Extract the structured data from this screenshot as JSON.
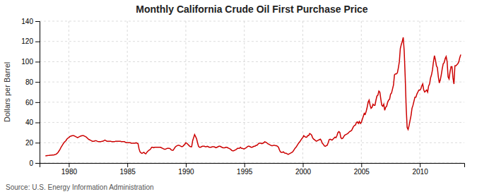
{
  "chart_data": {
    "type": "line",
    "title": "Monthly California Crude Oil First Purchase Price",
    "ylabel": "Dollars per Barrel",
    "source": "Source: U.S. Energy Information Administration",
    "color": "#cc0000",
    "grid": true,
    "xlim": [
      1977.5,
      2013.8
    ],
    "xticks": [
      1980,
      1985,
      1990,
      1995,
      2000,
      2005,
      2010
    ],
    "ylim": [
      0,
      140
    ],
    "yticks": [
      0,
      20,
      40,
      60,
      80,
      100,
      120,
      140
    ],
    "x": [
      1978.0,
      1978.083,
      1978.167,
      1978.25,
      1978.333,
      1978.417,
      1978.5,
      1978.583,
      1978.667,
      1978.75,
      1978.833,
      1978.917,
      1979.0,
      1979.083,
      1979.167,
      1979.25,
      1979.333,
      1979.417,
      1979.5,
      1979.583,
      1979.667,
      1979.75,
      1979.833,
      1979.917,
      1980.0,
      1980.083,
      1980.167,
      1980.25,
      1980.333,
      1980.417,
      1980.5,
      1980.583,
      1980.667,
      1980.75,
      1980.833,
      1980.917,
      1981.0,
      1981.083,
      1981.167,
      1981.25,
      1981.333,
      1981.417,
      1981.5,
      1981.583,
      1981.667,
      1981.75,
      1981.833,
      1981.917,
      1982.0,
      1982.083,
      1982.167,
      1982.25,
      1982.333,
      1982.417,
      1982.5,
      1982.583,
      1982.667,
      1982.75,
      1982.833,
      1982.917,
      1983.0,
      1983.083,
      1983.167,
      1983.25,
      1983.333,
      1983.417,
      1983.5,
      1983.583,
      1983.667,
      1983.75,
      1983.833,
      1983.917,
      1984.0,
      1984.083,
      1984.167,
      1984.25,
      1984.333,
      1984.417,
      1984.5,
      1984.583,
      1984.667,
      1984.75,
      1984.833,
      1984.917,
      1985.0,
      1985.083,
      1985.167,
      1985.25,
      1985.333,
      1985.417,
      1985.5,
      1985.583,
      1985.667,
      1985.75,
      1985.833,
      1985.917,
      1986.0,
      1986.083,
      1986.167,
      1986.25,
      1986.333,
      1986.417,
      1986.5,
      1986.583,
      1986.667,
      1986.75,
      1986.833,
      1986.917,
      1987.0,
      1987.083,
      1987.167,
      1987.25,
      1987.333,
      1987.417,
      1987.5,
      1987.583,
      1987.667,
      1987.75,
      1987.833,
      1987.917,
      1988.0,
      1988.083,
      1988.167,
      1988.25,
      1988.333,
      1988.417,
      1988.5,
      1988.583,
      1988.667,
      1988.75,
      1988.833,
      1988.917,
      1989.0,
      1989.083,
      1989.167,
      1989.25,
      1989.333,
      1989.417,
      1989.5,
      1989.583,
      1989.667,
      1989.75,
      1989.833,
      1989.917,
      1990.0,
      1990.083,
      1990.167,
      1990.25,
      1990.333,
      1990.417,
      1990.5,
      1990.583,
      1990.667,
      1990.75,
      1990.833,
      1990.917,
      1991.0,
      1991.083,
      1991.167,
      1991.25,
      1991.333,
      1991.417,
      1991.5,
      1991.583,
      1991.667,
      1991.75,
      1991.833,
      1991.917,
      1992.0,
      1992.083,
      1992.167,
      1992.25,
      1992.333,
      1992.417,
      1992.5,
      1992.583,
      1992.667,
      1992.75,
      1992.833,
      1992.917,
      1993.0,
      1993.083,
      1993.167,
      1993.25,
      1993.333,
      1993.417,
      1993.5,
      1993.583,
      1993.667,
      1993.75,
      1993.833,
      1993.917,
      1994.0,
      1994.083,
      1994.167,
      1994.25,
      1994.333,
      1994.417,
      1994.5,
      1994.583,
      1994.667,
      1994.75,
      1994.833,
      1994.917,
      1995.0,
      1995.083,
      1995.167,
      1995.25,
      1995.333,
      1995.417,
      1995.5,
      1995.583,
      1995.667,
      1995.75,
      1995.833,
      1995.917,
      1996.0,
      1996.083,
      1996.167,
      1996.25,
      1996.333,
      1996.417,
      1996.5,
      1996.583,
      1996.667,
      1996.75,
      1996.833,
      1996.917,
      1997.0,
      1997.083,
      1997.167,
      1997.25,
      1997.333,
      1997.417,
      1997.5,
      1997.583,
      1997.667,
      1997.75,
      1997.833,
      1997.917,
      1998.0,
      1998.083,
      1998.167,
      1998.25,
      1998.333,
      1998.417,
      1998.5,
      1998.583,
      1998.667,
      1998.75,
      1998.833,
      1998.917,
      1999.0,
      1999.083,
      1999.167,
      1999.25,
      1999.333,
      1999.417,
      1999.5,
      1999.583,
      1999.667,
      1999.75,
      1999.833,
      1999.917,
      2000.0,
      2000.083,
      2000.167,
      2000.25,
      2000.333,
      2000.417,
      2000.5,
      2000.583,
      2000.667,
      2000.75,
      2000.833,
      2000.917,
      2001.0,
      2001.083,
      2001.167,
      2001.25,
      2001.333,
      2001.417,
      2001.5,
      2001.583,
      2001.667,
      2001.75,
      2001.833,
      2001.917,
      2002.0,
      2002.083,
      2002.167,
      2002.25,
      2002.333,
      2002.417,
      2002.5,
      2002.583,
      2002.667,
      2002.75,
      2002.833,
      2002.917,
      2003.0,
      2003.083,
      2003.167,
      2003.25,
      2003.333,
      2003.417,
      2003.5,
      2003.583,
      2003.667,
      2003.75,
      2003.833,
      2003.917,
      2004.0,
      2004.083,
      2004.167,
      2004.25,
      2004.333,
      2004.417,
      2004.5,
      2004.583,
      2004.667,
      2004.75,
      2004.833,
      2004.917,
      2005.0,
      2005.083,
      2005.167,
      2005.25,
      2005.333,
      2005.417,
      2005.5,
      2005.583,
      2005.667,
      2005.75,
      2005.833,
      2005.917,
      2006.0,
      2006.083,
      2006.167,
      2006.25,
      2006.333,
      2006.417,
      2006.5,
      2006.583,
      2006.667,
      2006.75,
      2006.833,
      2006.917,
      2007.0,
      2007.083,
      2007.167,
      2007.25,
      2007.333,
      2007.417,
      2007.5,
      2007.583,
      2007.667,
      2007.75,
      2007.833,
      2007.917,
      2008.0,
      2008.083,
      2008.167,
      2008.25,
      2008.333,
      2008.417,
      2008.5,
      2008.583,
      2008.667,
      2008.75,
      2008.833,
      2008.917,
      2009.0,
      2009.083,
      2009.167,
      2009.25,
      2009.333,
      2009.417,
      2009.5,
      2009.583,
      2009.667,
      2009.75,
      2009.833,
      2009.917,
      2010.0,
      2010.083,
      2010.167,
      2010.25,
      2010.333,
      2010.417,
      2010.5,
      2010.583,
      2010.667,
      2010.75,
      2010.833,
      2010.917,
      2011.0,
      2011.083,
      2011.167,
      2011.25,
      2011.333,
      2011.417,
      2011.5,
      2011.583,
      2011.667,
      2011.75,
      2011.833,
      2011.917,
      2012.0,
      2012.083,
      2012.167,
      2012.25,
      2012.333,
      2012.417,
      2012.5,
      2012.583,
      2012.667,
      2012.75,
      2012.833,
      2012.917,
      2013.0,
      2013.083,
      2013.167,
      2013.25,
      2013.333,
      2013.417,
      2013.5
    ],
    "values": [
      7.0,
      7.2,
      7.3,
      7.4,
      7.5,
      7.6,
      7.7,
      7.8,
      7.9,
      8.0,
      8.3,
      8.6,
      9.5,
      10.5,
      12.0,
      13.5,
      15.5,
      17.0,
      18.5,
      20.0,
      21.0,
      22.0,
      23.5,
      24.5,
      25.0,
      26.0,
      26.5,
      26.8,
      27.0,
      27.0,
      26.5,
      26.0,
      25.5,
      25.0,
      25.5,
      26.0,
      26.5,
      26.8,
      27.0,
      27.0,
      26.5,
      26.0,
      25.5,
      24.5,
      23.5,
      23.0,
      22.5,
      22.0,
      21.5,
      21.5,
      21.5,
      22.0,
      22.0,
      21.5,
      21.0,
      21.0,
      21.0,
      21.0,
      21.5,
      21.5,
      22.0,
      22.5,
      22.0,
      21.5,
      21.5,
      21.5,
      21.5,
      21.5,
      21.0,
      21.0,
      21.0,
      21.0,
      21.5,
      21.5,
      21.5,
      21.5,
      21.5,
      21.5,
      21.0,
      21.0,
      21.0,
      21.0,
      20.5,
      20.0,
      20.0,
      20.0,
      20.0,
      20.0,
      19.5,
      19.5,
      19.5,
      19.5,
      19.5,
      20.0,
      19.5,
      19.0,
      14.0,
      11.0,
      10.0,
      9.5,
      10.0,
      10.5,
      9.5,
      9.0,
      10.5,
      11.5,
      12.5,
      13.0,
      14.0,
      15.5,
      15.5,
      15.0,
      15.5,
      15.5,
      15.5,
      15.5,
      15.5,
      15.5,
      15.5,
      15.0,
      14.5,
      14.0,
      13.5,
      13.5,
      14.0,
      14.5,
      14.5,
      14.5,
      14.0,
      13.0,
      12.5,
      12.5,
      14.0,
      15.5,
      16.5,
      17.0,
      17.5,
      17.5,
      17.0,
      16.5,
      16.0,
      16.5,
      17.5,
      18.5,
      20.0,
      19.5,
      18.5,
      17.5,
      16.5,
      16.0,
      16.0,
      22.0,
      25.0,
      28.0,
      26.0,
      24.0,
      20.0,
      16.5,
      15.5,
      15.5,
      16.0,
      16.5,
      16.5,
      16.5,
      16.0,
      16.0,
      16.5,
      16.0,
      15.5,
      15.5,
      15.5,
      16.0,
      16.0,
      16.0,
      15.5,
      15.0,
      15.5,
      16.0,
      16.5,
      16.5,
      16.0,
      15.5,
      15.0,
      15.0,
      15.0,
      15.5,
      15.5,
      15.0,
      14.5,
      14.0,
      13.5,
      12.5,
      12.0,
      12.0,
      12.5,
      13.0,
      13.5,
      14.5,
      14.5,
      14.5,
      15.5,
      14.5,
      14.5,
      14.0,
      14.0,
      14.5,
      15.0,
      16.0,
      16.5,
      16.5,
      16.0,
      15.5,
      15.5,
      16.0,
      16.5,
      16.5,
      17.5,
      17.5,
      18.5,
      19.5,
      19.5,
      19.5,
      19.0,
      19.5,
      20.0,
      21.0,
      20.5,
      20.0,
      19.0,
      18.5,
      18.0,
      17.5,
      17.0,
      17.0,
      17.5,
      17.5,
      17.0,
      17.0,
      16.5,
      15.5,
      13.0,
      11.0,
      10.5,
      10.5,
      11.0,
      10.0,
      9.5,
      9.5,
      9.0,
      8.5,
      9.0,
      9.5,
      10.0,
      10.5,
      11.5,
      13.0,
      14.5,
      15.5,
      17.0,
      18.5,
      20.0,
      21.0,
      22.5,
      24.0,
      25.0,
      27.0,
      26.0,
      25.5,
      25.5,
      27.0,
      27.0,
      29.0,
      28.5,
      27.5,
      25.0,
      23.5,
      23.0,
      22.0,
      21.5,
      22.0,
      22.5,
      23.0,
      23.5,
      22.0,
      19.5,
      18.5,
      17.0,
      16.5,
      17.0,
      17.5,
      20.0,
      23.0,
      23.5,
      23.0,
      22.5,
      23.5,
      24.5,
      25.5,
      25.0,
      27.0,
      30.0,
      31.0,
      30.0,
      25.0,
      24.0,
      24.5,
      26.0,
      27.5,
      28.0,
      28.5,
      29.0,
      30.0,
      31.0,
      31.5,
      32.0,
      34.0,
      36.0,
      37.0,
      37.5,
      40.0,
      40.5,
      39.0,
      41.0,
      39.0,
      40.0,
      43.0,
      46.0,
      49.0,
      48.0,
      51.0,
      55.0,
      60.0,
      62.0,
      57.0,
      54.0,
      55.0,
      58.0,
      57.0,
      57.0,
      62.0,
      66.0,
      67.0,
      71.0,
      70.0,
      63.0,
      57.0,
      56.0,
      58.0,
      52.0,
      55.0,
      56.0,
      60.0,
      62.0,
      63.0,
      68.0,
      69.0,
      73.0,
      77.0,
      87.0,
      88.0,
      88.0,
      89.0,
      94.0,
      100.0,
      113.0,
      117.0,
      120.0,
      124.0,
      110.0,
      85.0,
      55.0,
      35.0,
      33.0,
      37.0,
      42.0,
      47.0,
      54.0,
      57.0,
      61.0,
      65.0,
      65.0,
      68.0,
      70.0,
      72.0,
      72.0,
      73.0,
      76.0,
      78.0,
      72.0,
      70.0,
      71.0,
      72.0,
      70.0,
      76.0,
      78.0,
      84.0,
      87.0,
      92.0,
      100.0,
      106.0,
      102.0,
      96.0,
      94.0,
      85.0,
      79.0,
      82.0,
      87.0,
      93.0,
      98.0,
      99.0,
      103.0,
      105.0,
      100.0,
      85.0,
      83.0,
      90.0,
      95.0,
      95.0,
      84.0,
      78.0,
      96.0,
      96.0,
      97.0,
      98.0,
      100.0,
      104.0,
      107.0
    ]
  }
}
